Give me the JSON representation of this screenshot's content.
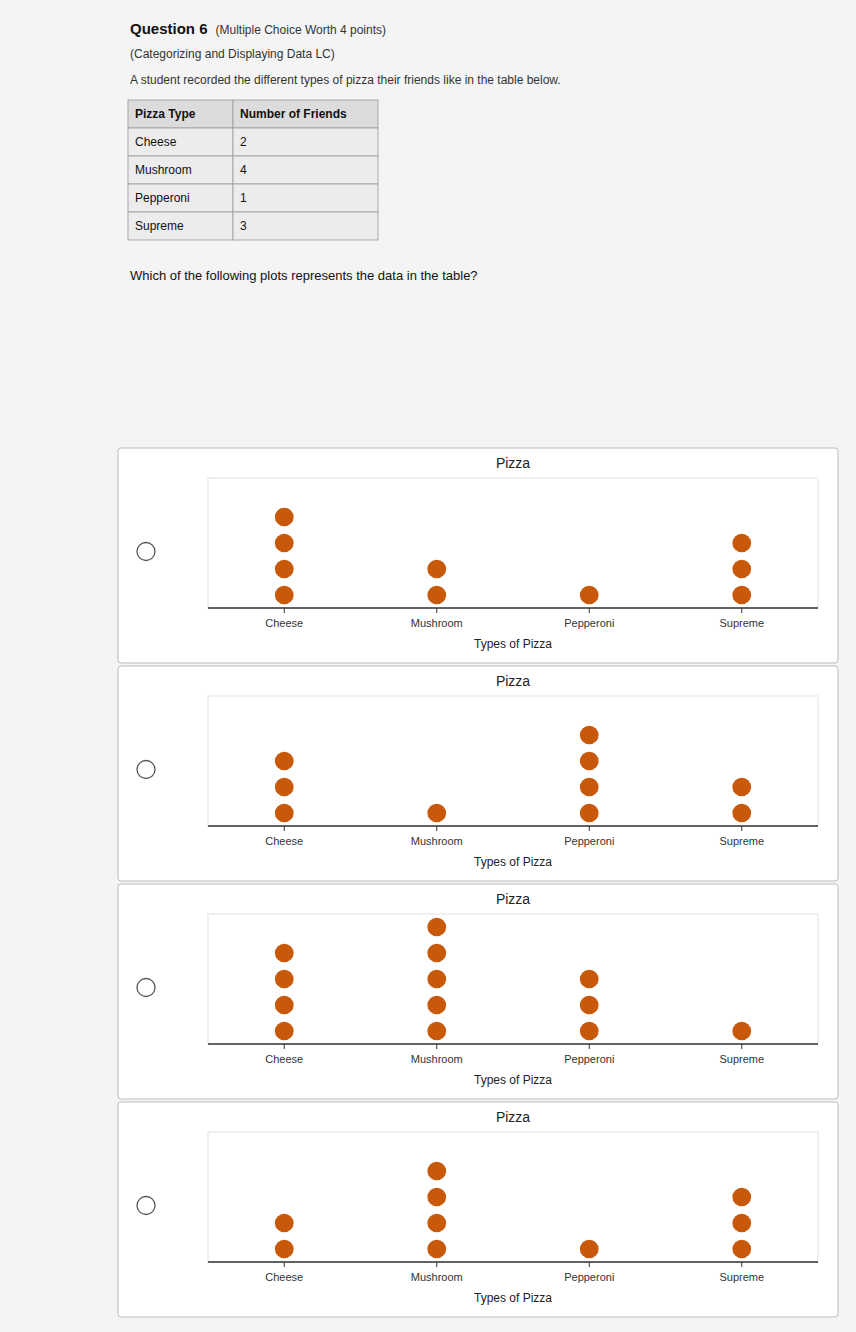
{
  "page": {
    "title": "Question 6",
    "title_note": "(Multiple Choice Worth 4 points)",
    "subtitle": "(Categorizing and Displaying Data LC)",
    "description": "A student recorded the different types of pizza their friends like in the table below.",
    "table": {
      "headers": [
        "Pizza Type",
        "Number of Friends"
      ],
      "rows": [
        [
          "Cheese",
          2
        ],
        [
          "Mushroom",
          4
        ],
        [
          "Pepperoni",
          1
        ],
        [
          "Supreme",
          3
        ]
      ]
    },
    "question": "Which of the following plots represents the data in the table?"
  },
  "chart_data": [
    {
      "type": "dot",
      "title": "Pizza",
      "x_label": "Types of Pizza",
      "categories": [
        "Cheese",
        "Mushroom",
        "Pepperoni",
        "Supreme"
      ],
      "values": [
        4,
        2,
        1,
        3
      ],
      "color": "#c8580a",
      "ylim": [
        0,
        5
      ],
      "tick_labels": "x",
      "grid": false
    },
    {
      "type": "dot",
      "title": "Pizza",
      "x_label": "Types of Pizza",
      "categories": [
        "Cheese",
        "Mushroom",
        "Pepperoni",
        "Supreme"
      ],
      "values": [
        3,
        1,
        4,
        2
      ],
      "color": "#c8580a",
      "ylim": [
        0,
        5
      ],
      "tick_labels": "x",
      "grid": false
    },
    {
      "type": "dot",
      "title": "Pizza",
      "x_label": "Types of Pizza",
      "categories": [
        "Cheese",
        "Mushroom",
        "Pepperoni",
        "Supreme"
      ],
      "values": [
        4,
        5,
        3,
        1
      ],
      "color": "#c8580a",
      "ylim": [
        0,
        5
      ],
      "tick_labels": "x",
      "grid": false
    },
    {
      "type": "dot",
      "title": "Pizza",
      "x_label": "Types of Pizza",
      "categories": [
        "Cheese",
        "Mushroom",
        "Pepperoni",
        "Supreme"
      ],
      "values": [
        2,
        4,
        1,
        3
      ],
      "color": "#c8580a",
      "ylim": [
        0,
        5
      ],
      "tick_labels": "x",
      "grid": false
    }
  ]
}
